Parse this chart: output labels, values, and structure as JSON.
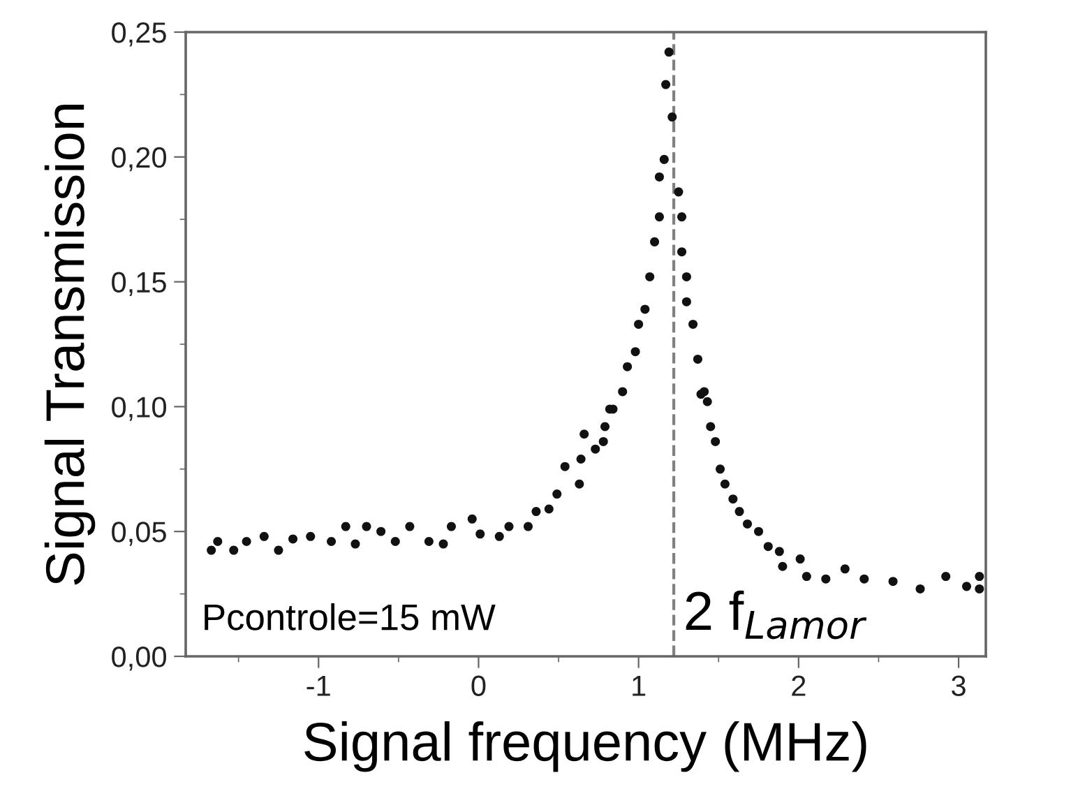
{
  "chart_data": {
    "type": "scatter",
    "xlabel": "Signal frequency (MHz)",
    "ylabel": "Signal Transmission",
    "xlim": [
      -1.83,
      3.17
    ],
    "ylim": [
      0,
      0.25
    ],
    "xticks": [
      -1,
      0,
      1,
      2,
      3
    ],
    "yticks": [
      {
        "value": 0,
        "label": "0,00"
      },
      {
        "value": 0.05,
        "label": "0,05"
      },
      {
        "value": 0.1,
        "label": "0,10"
      },
      {
        "value": 0.15,
        "label": "0,15"
      },
      {
        "value": 0.2,
        "label": "0,20"
      },
      {
        "value": 0.25,
        "label": "0,25"
      }
    ],
    "grid": false,
    "marker": "circle",
    "series": [
      {
        "color": "#111111",
        "x": [
          -1.67,
          -1.63,
          -1.53,
          -1.45,
          -1.34,
          -1.25,
          -1.16,
          -1.05,
          -0.92,
          -0.83,
          -0.77,
          -0.7,
          -0.61,
          -0.52,
          -0.43,
          -0.31,
          -0.22,
          -0.17,
          -0.04,
          0.01,
          0.13,
          0.19,
          0.31,
          0.36,
          0.44,
          0.49,
          0.54,
          0.63,
          0.64,
          0.66,
          0.73,
          0.78,
          0.79,
          0.82,
          0.84,
          0.9,
          0.93,
          0.98,
          1.0,
          1.04,
          1.07,
          1.1,
          1.13,
          1.13,
          1.16,
          1.17,
          1.19,
          1.21,
          1.25,
          1.27,
          1.27,
          1.3,
          1.3,
          1.34,
          1.37,
          1.39,
          1.41,
          1.43,
          1.45,
          1.48,
          1.51,
          1.54,
          1.59,
          1.63,
          1.68,
          1.75,
          1.81,
          1.88,
          1.9,
          2.01,
          2.05,
          2.17,
          2.29,
          2.41,
          2.59,
          2.76,
          2.92,
          3.05,
          3.13,
          3.13
        ],
        "values": [
          0.0425,
          0.046,
          0.0425,
          0.046,
          0.048,
          0.0425,
          0.047,
          0.048,
          0.046,
          0.052,
          0.045,
          0.052,
          0.05,
          0.046,
          0.052,
          0.046,
          0.045,
          0.052,
          0.055,
          0.049,
          0.048,
          0.052,
          0.052,
          0.058,
          0.059,
          0.065,
          0.076,
          0.069,
          0.079,
          0.089,
          0.083,
          0.086,
          0.092,
          0.099,
          0.099,
          0.106,
          0.116,
          0.122,
          0.133,
          0.139,
          0.152,
          0.166,
          0.176,
          0.192,
          0.199,
          0.229,
          0.242,
          0.216,
          0.186,
          0.176,
          0.162,
          0.152,
          0.142,
          0.133,
          0.119,
          0.105,
          0.106,
          0.102,
          0.092,
          0.086,
          0.075,
          0.069,
          0.063,
          0.058,
          0.053,
          0.05,
          0.044,
          0.042,
          0.036,
          0.039,
          0.032,
          0.031,
          0.035,
          0.031,
          0.03,
          0.027,
          0.032,
          0.028,
          0.032,
          0.027
        ]
      }
    ],
    "ref_lines": [
      {
        "axis": "x",
        "value": 1.22,
        "label": "2 f$_{Lamor}$",
        "color": "#808080",
        "line_style": "dashed"
      }
    ],
    "annotations": [
      "Pcontrole=15 mW"
    ]
  }
}
